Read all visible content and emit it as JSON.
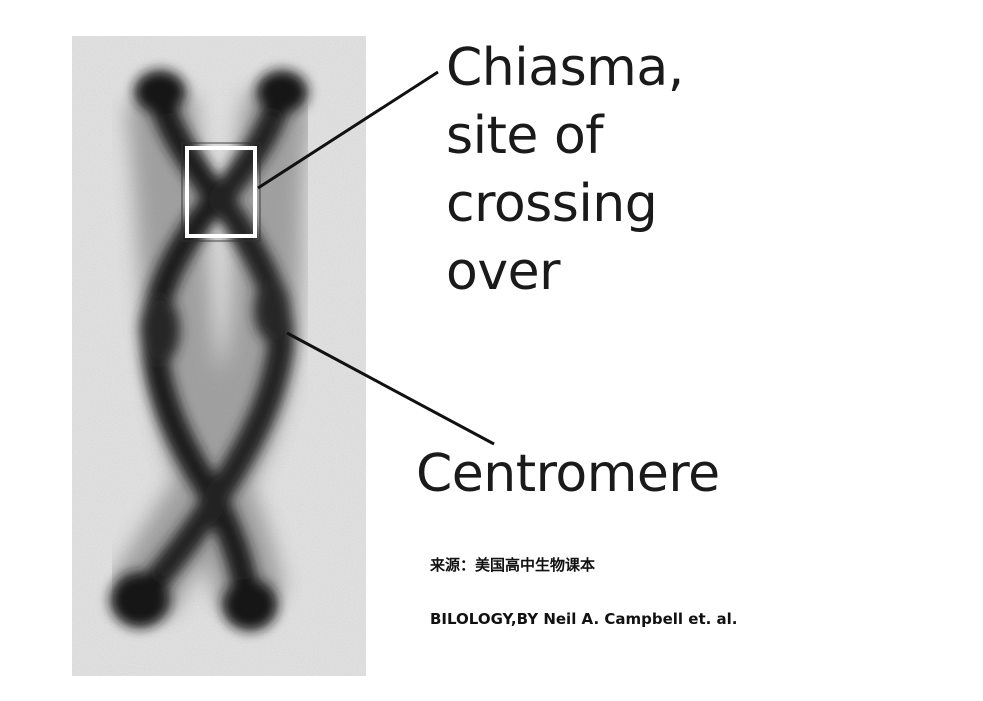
{
  "labels": {
    "chiasma": [
      "Chiasma,",
      "site of",
      "crossing",
      "over"
    ],
    "centromere": "Centromere"
  },
  "credits": {
    "source": "来源：美国高中生物课本",
    "book": "BILOLOGY,BY Neil A. Campbell et. al."
  },
  "colors": {
    "background": "#ffffff",
    "micrograph_bg": "#e9e9e9",
    "chromosome": "#1c1c1c",
    "text": "#1a1a1a",
    "leader_line": "#111111",
    "chiasma_box": "#ffffff"
  }
}
